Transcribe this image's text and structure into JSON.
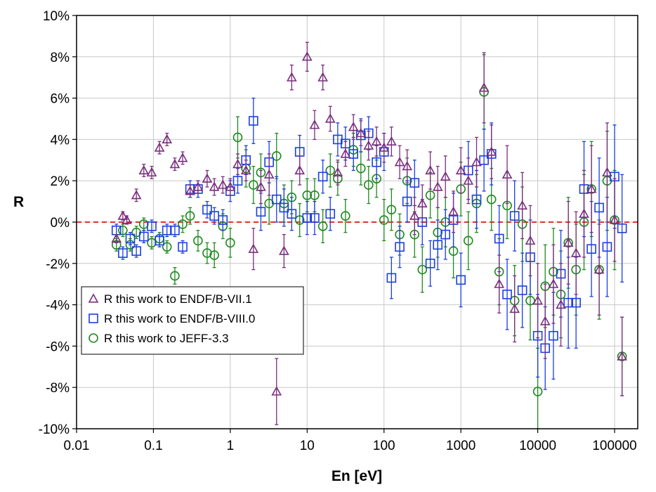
{
  "chart_data": {
    "type": "scatter",
    "title": "",
    "xlabel": "En [eV]",
    "ylabel": "R",
    "xscale": "log",
    "xlim": [
      0.01,
      200000
    ],
    "ylim": [
      -10,
      10
    ],
    "x_ticks": [
      0.01,
      0.1,
      1,
      10,
      100,
      1000,
      10000,
      100000
    ],
    "x_tick_labels": [
      "0.01",
      "0.1",
      "1",
      "10",
      "100",
      "1000",
      "10000",
      "100000"
    ],
    "y_ticks": [
      10,
      8,
      6,
      4,
      2,
      0,
      -2,
      -4,
      -6,
      -8,
      -10
    ],
    "y_tick_labels": [
      "10%",
      "8%",
      "6%",
      "4%",
      "2%",
      "0%",
      "-2%",
      "-4%",
      "-6%",
      "-8%",
      "-10%"
    ],
    "grid": true,
    "reference_line": {
      "y": 0,
      "style": "dashed",
      "color": "#e53030"
    },
    "legend": {
      "position": "bottom-left",
      "entries": [
        "R this work to ENDF/B-VII.1",
        "R this work to ENDF/B-VIII.0",
        "R this work to JEFF-3.3"
      ]
    },
    "series": [
      {
        "name": "R this work to ENDF/B-VII.1",
        "marker": "triangle",
        "color": "#7a2e7e",
        "points": [
          [
            0.033,
            -0.8,
            0.2
          ],
          [
            0.04,
            0.3,
            0.2
          ],
          [
            0.045,
            0.1,
            0.2
          ],
          [
            0.06,
            1.3,
            0.3
          ],
          [
            0.075,
            2.5,
            0.3
          ],
          [
            0.095,
            2.4,
            0.3
          ],
          [
            0.12,
            3.6,
            0.3
          ],
          [
            0.15,
            4.0,
            0.3
          ],
          [
            0.19,
            2.8,
            0.3
          ],
          [
            0.24,
            3.1,
            0.3
          ],
          [
            0.3,
            1.5,
            0.3
          ],
          [
            0.38,
            1.7,
            0.3
          ],
          [
            0.5,
            2.1,
            0.4
          ],
          [
            0.62,
            1.7,
            0.4
          ],
          [
            0.8,
            1.8,
            0.4
          ],
          [
            1.0,
            1.7,
            0.4
          ],
          [
            1.25,
            2.8,
            0.5
          ],
          [
            1.6,
            2.5,
            0.5
          ],
          [
            2.0,
            -1.3,
            1.0
          ],
          [
            2.5,
            1.7,
            0.8
          ],
          [
            3.2,
            2.3,
            1.0
          ],
          [
            4.0,
            -8.2,
            1.6
          ],
          [
            5.0,
            -1.4,
            0.8
          ],
          [
            6.3,
            7.0,
            0.6
          ],
          [
            8.0,
            2.5,
            0.7
          ],
          [
            10.0,
            8.0,
            0.7
          ],
          [
            12.5,
            4.7,
            0.7
          ],
          [
            16.0,
            7.0,
            0.6
          ],
          [
            20.0,
            5.0,
            0.6
          ],
          [
            25.0,
            2.4,
            0.6
          ],
          [
            31.5,
            3.3,
            0.6
          ],
          [
            40.0,
            4.6,
            0.6
          ],
          [
            50.0,
            4.3,
            0.6
          ],
          [
            63.0,
            3.7,
            0.7
          ],
          [
            80.0,
            3.9,
            0.7
          ],
          [
            100.0,
            3.6,
            0.7
          ],
          [
            125.0,
            3.9,
            0.7
          ],
          [
            160.0,
            2.9,
            0.8
          ],
          [
            200.0,
            2.7,
            0.8
          ],
          [
            250.0,
            0.3,
            0.9
          ],
          [
            315.0,
            0.9,
            0.9
          ],
          [
            400.0,
            2.5,
            0.9
          ],
          [
            500.0,
            1.7,
            1.0
          ],
          [
            630.0,
            2.2,
            1.0
          ],
          [
            800.0,
            0.5,
            1.0
          ],
          [
            1000.0,
            2.5,
            1.1
          ],
          [
            1250.0,
            2.0,
            1.1
          ],
          [
            1600.0,
            2.9,
            1.2
          ],
          [
            2000.0,
            6.5,
            1.7
          ],
          [
            2500.0,
            3.4,
            1.3
          ],
          [
            3150.0,
            -3.0,
            1.4
          ],
          [
            4000.0,
            2.3,
            1.4
          ],
          [
            5000.0,
            -4.2,
            1.6
          ],
          [
            6300.0,
            0.8,
            1.6
          ],
          [
            8000.0,
            -0.9,
            1.7
          ],
          [
            10000.0,
            -3.8,
            1.8
          ],
          [
            12500.0,
            -4.8,
            1.8
          ],
          [
            16000.0,
            -3.0,
            1.9
          ],
          [
            20000.0,
            -4.0,
            2.0
          ],
          [
            25000.0,
            -1.0,
            2.0
          ],
          [
            31500.0,
            -1.5,
            2.0
          ],
          [
            40000.0,
            0.4,
            2.1
          ],
          [
            50000.0,
            1.6,
            2.1
          ],
          [
            63000.0,
            -2.3,
            2.2
          ],
          [
            80000.0,
            2.4,
            2.4
          ],
          [
            100000.0,
            0.1,
            2.0
          ],
          [
            125000.0,
            -6.5,
            1.9
          ]
        ]
      },
      {
        "name": "R this work to ENDF/B-VIII.0",
        "marker": "square",
        "color": "#1b3fe0",
        "points": [
          [
            0.033,
            -0.4,
            0.3
          ],
          [
            0.04,
            -1.5,
            0.3
          ],
          [
            0.05,
            -0.8,
            0.3
          ],
          [
            0.06,
            -1.4,
            0.3
          ],
          [
            0.075,
            -0.7,
            0.3
          ],
          [
            0.095,
            -0.2,
            0.3
          ],
          [
            0.12,
            -0.9,
            0.3
          ],
          [
            0.15,
            -0.4,
            0.3
          ],
          [
            0.19,
            -0.4,
            0.3
          ],
          [
            0.24,
            -1.2,
            0.3
          ],
          [
            0.3,
            1.6,
            0.4
          ],
          [
            0.38,
            1.6,
            0.4
          ],
          [
            0.5,
            0.6,
            0.4
          ],
          [
            0.62,
            0.3,
            0.4
          ],
          [
            0.8,
            0.1,
            0.5
          ],
          [
            1.0,
            1.5,
            0.5
          ],
          [
            1.25,
            2.0,
            0.6
          ],
          [
            1.6,
            3.0,
            0.7
          ],
          [
            2.0,
            4.9,
            1.1
          ],
          [
            2.5,
            0.5,
            0.9
          ],
          [
            3.2,
            2.9,
            1.0
          ],
          [
            4.0,
            1.1,
            1.1
          ],
          [
            5.0,
            0.7,
            0.9
          ],
          [
            6.3,
            0.4,
            0.8
          ],
          [
            8.0,
            3.4,
            0.8
          ],
          [
            10.0,
            0.2,
            0.8
          ],
          [
            12.5,
            0.2,
            0.8
          ],
          [
            16.0,
            2.2,
            0.8
          ],
          [
            20.0,
            0.4,
            0.8
          ],
          [
            25.0,
            4.0,
            0.8
          ],
          [
            31.5,
            3.8,
            0.8
          ],
          [
            40.0,
            3.3,
            0.8
          ],
          [
            50.0,
            4.2,
            0.8
          ],
          [
            63.0,
            4.3,
            0.8
          ],
          [
            80.0,
            2.9,
            0.8
          ],
          [
            100.0,
            3.4,
            0.9
          ],
          [
            125.0,
            -2.7,
            1.0
          ],
          [
            160.0,
            -1.2,
            1.0
          ],
          [
            200.0,
            1.0,
            1.0
          ],
          [
            250.0,
            1.9,
            1.1
          ],
          [
            315.0,
            0.0,
            1.1
          ],
          [
            400.0,
            -2.0,
            1.1
          ],
          [
            500.0,
            -1.1,
            1.2
          ],
          [
            630.0,
            -0.6,
            1.2
          ],
          [
            800.0,
            0.1,
            1.3
          ],
          [
            1000.0,
            -2.8,
            1.3
          ],
          [
            1250.0,
            2.5,
            1.4
          ],
          [
            1600.0,
            1.1,
            1.4
          ],
          [
            2000.0,
            3.0,
            1.5
          ],
          [
            2500.0,
            3.3,
            1.5
          ],
          [
            3150.0,
            -0.8,
            1.6
          ],
          [
            4000.0,
            -3.5,
            1.7
          ],
          [
            5000.0,
            0.3,
            1.7
          ],
          [
            6300.0,
            -3.3,
            1.8
          ],
          [
            8000.0,
            -1.7,
            1.8
          ],
          [
            10000.0,
            -5.5,
            2.0
          ],
          [
            12500.0,
            -6.1,
            2.0
          ],
          [
            16000.0,
            -5.5,
            2.1
          ],
          [
            20000.0,
            -2.5,
            2.1
          ],
          [
            25000.0,
            -3.9,
            2.2
          ],
          [
            31500.0,
            -3.9,
            2.2
          ],
          [
            40000.0,
            1.6,
            2.3
          ],
          [
            50000.0,
            -1.3,
            2.3
          ],
          [
            63000.0,
            0.7,
            2.4
          ],
          [
            80000.0,
            -1.2,
            2.4
          ],
          [
            100000.0,
            2.2,
            2.5
          ],
          [
            125000.0,
            -0.3,
            2.6
          ]
        ]
      },
      {
        "name": "R this work to JEFF-3.3",
        "marker": "circle",
        "color": "#1e8a1e",
        "points": [
          [
            0.033,
            -1.1,
            0.3
          ],
          [
            0.04,
            -0.4,
            0.3
          ],
          [
            0.05,
            -1.1,
            0.3
          ],
          [
            0.06,
            -0.5,
            0.3
          ],
          [
            0.075,
            -0.1,
            0.3
          ],
          [
            0.095,
            -1.0,
            0.3
          ],
          [
            0.12,
            -0.8,
            0.3
          ],
          [
            0.15,
            -1.2,
            0.3
          ],
          [
            0.19,
            -2.6,
            0.4
          ],
          [
            0.24,
            -0.1,
            0.4
          ],
          [
            0.3,
            0.3,
            0.4
          ],
          [
            0.38,
            -0.9,
            0.5
          ],
          [
            0.5,
            -1.5,
            0.5
          ],
          [
            0.62,
            -1.6,
            0.6
          ],
          [
            0.8,
            -0.2,
            0.6
          ],
          [
            1.0,
            -1.0,
            0.7
          ],
          [
            1.25,
            4.1,
            1.0
          ],
          [
            1.6,
            2.6,
            0.9
          ],
          [
            2.0,
            1.8,
            0.9
          ],
          [
            2.5,
            2.4,
            0.9
          ],
          [
            3.2,
            0.9,
            1.0
          ],
          [
            4.0,
            3.2,
            1.1
          ],
          [
            5.0,
            0.9,
            0.9
          ],
          [
            6.3,
            1.2,
            0.8
          ],
          [
            8.0,
            0.1,
            0.8
          ],
          [
            10.0,
            1.3,
            0.8
          ],
          [
            12.5,
            1.3,
            0.8
          ],
          [
            16.0,
            -0.2,
            0.8
          ],
          [
            20.0,
            2.5,
            0.8
          ],
          [
            25.0,
            2.1,
            0.8
          ],
          [
            31.5,
            0.3,
            0.8
          ],
          [
            40.0,
            3.5,
            0.8
          ],
          [
            50.0,
            2.6,
            0.8
          ],
          [
            63.0,
            1.8,
            0.9
          ],
          [
            80.0,
            2.1,
            0.9
          ],
          [
            100.0,
            0.1,
            1.0
          ],
          [
            125.0,
            0.6,
            1.0
          ],
          [
            160.0,
            -0.6,
            1.0
          ],
          [
            200.0,
            2.0,
            1.1
          ],
          [
            250.0,
            -0.6,
            1.1
          ],
          [
            315.0,
            -2.3,
            1.1
          ],
          [
            400.0,
            1.3,
            1.1
          ],
          [
            500.0,
            -0.5,
            1.2
          ],
          [
            630.0,
            0.0,
            1.2
          ],
          [
            800.0,
            -1.4,
            1.3
          ],
          [
            1000.0,
            1.6,
            1.3
          ],
          [
            1250.0,
            -0.9,
            1.4
          ],
          [
            1600.0,
            0.9,
            1.4
          ],
          [
            2000.0,
            6.3,
            1.8
          ],
          [
            2500.0,
            1.1,
            1.5
          ],
          [
            3150.0,
            -2.4,
            1.6
          ],
          [
            4000.0,
            0.8,
            1.6
          ],
          [
            5000.0,
            -3.8,
            1.7
          ],
          [
            6300.0,
            -0.1,
            1.8
          ],
          [
            8000.0,
            -3.8,
            1.9
          ],
          [
            10000.0,
            -8.2,
            2.1
          ],
          [
            12500.0,
            -3.1,
            2.0
          ],
          [
            16000.0,
            -2.4,
            2.1
          ],
          [
            20000.0,
            -3.5,
            2.1
          ],
          [
            25000.0,
            -1.0,
            2.2
          ],
          [
            31500.0,
            -2.3,
            2.2
          ],
          [
            40000.0,
            0.0,
            2.3
          ],
          [
            50000.0,
            1.6,
            2.3
          ],
          [
            63000.0,
            -2.3,
            2.4
          ],
          [
            80000.0,
            2.0,
            2.4
          ],
          [
            100000.0,
            0.1,
            2.4
          ],
          [
            125000.0,
            -6.5,
            1.9
          ]
        ]
      }
    ]
  }
}
